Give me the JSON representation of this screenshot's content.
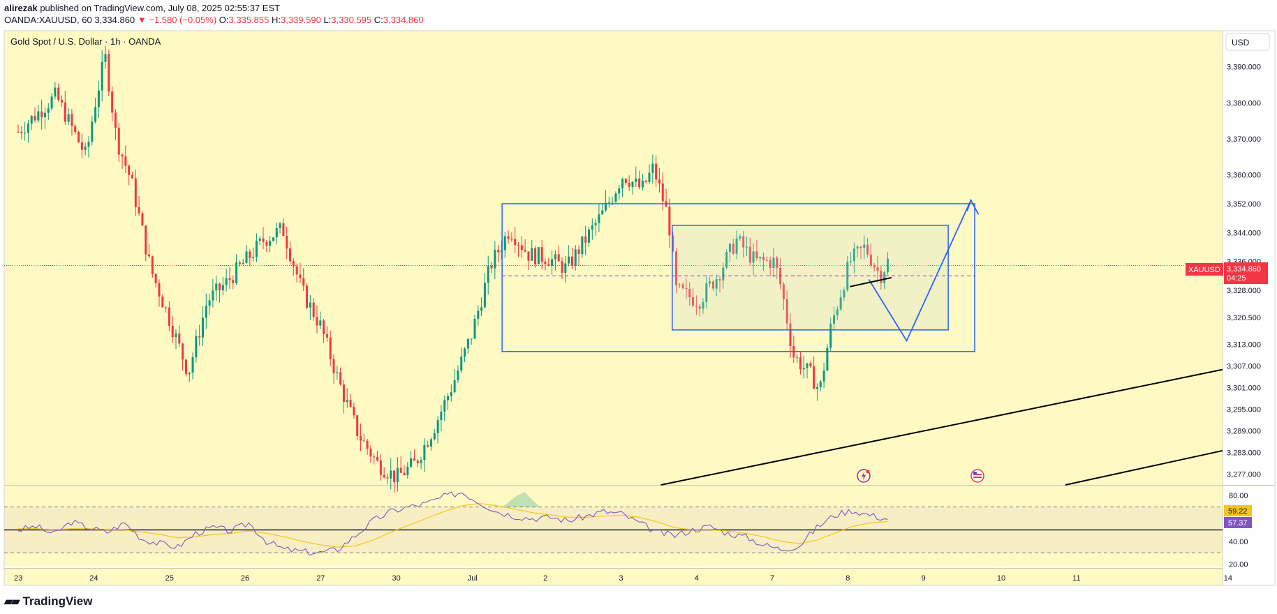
{
  "header": {
    "author": "alirezak",
    "published": "published on TradingView.com, July 08, 2025 02:55:37 EST",
    "symbol": "OANDA:XAUUSD, 60",
    "last": "3,334.860",
    "change": "−1.580 (−0.05%)",
    "o_label": "O:",
    "o": "3,335.855",
    "h_label": "H:",
    "h": "3,339.590",
    "l_label": "L:",
    "l": "3,330.595",
    "c_label": "C:",
    "c": "3,334.860"
  },
  "pane_title": "Gold Spot / U.S. Dollar · 1h · OANDA",
  "currency": "USD",
  "price_tag": {
    "symbol": "XAUUSD",
    "price": "3,334.860",
    "countdown": "04:25"
  },
  "rsi_tags": {
    "a": "59.22",
    "b": "57.37"
  },
  "footer": {
    "brand": "TradingView"
  },
  "colors": {
    "bg": "#fff9c4",
    "up": "#089981",
    "down": "#f23645",
    "box": "#2962ff",
    "rsi": "#7e57c2",
    "rsi_ma": "#f5c51e"
  },
  "chart_data": [
    {
      "type": "candlestick",
      "title": "Gold Spot / U.S. Dollar · 1h · OANDA",
      "x_ticks": [
        "23",
        "24",
        "25",
        "26",
        "27",
        "30",
        "Jul",
        "2",
        "3",
        "4",
        "7",
        "8",
        "9",
        "10",
        "11",
        "14"
      ],
      "y_ticks": [
        "3,390.000",
        "3,380.000",
        "3,370.000",
        "3,360.000",
        "3,352.000",
        "3,344.000",
        "3,336.000",
        "3,328.000",
        "3,320.500",
        "3,313.000",
        "3,307.000",
        "3,301.000",
        "3,295.000",
        "3,289.000",
        "3,283.000",
        "3,277.000"
      ],
      "ylim": [
        3274,
        3400
      ],
      "close_path": [
        [
          0,
          3372
        ],
        [
          0.5,
          3382
        ],
        [
          0.9,
          3365
        ],
        [
          1.0,
          3378
        ],
        [
          1.15,
          3393
        ],
        [
          1.3,
          3370
        ],
        [
          1.5,
          3358
        ],
        [
          1.75,
          3334
        ],
        [
          2.0,
          3320
        ],
        [
          2.25,
          3305
        ],
        [
          2.5,
          3325
        ],
        [
          2.75,
          3330
        ],
        [
          3.0,
          3336
        ],
        [
          3.25,
          3342
        ],
        [
          3.5,
          3345
        ],
        [
          3.75,
          3328
        ],
        [
          4.0,
          3318
        ],
        [
          4.25,
          3302
        ],
        [
          4.5,
          3288
        ],
        [
          4.75,
          3280
        ],
        [
          5.0,
          3276
        ],
        [
          5.25,
          3280
        ],
        [
          5.5,
          3290
        ],
        [
          5.75,
          3302
        ],
        [
          6.0,
          3316
        ],
        [
          6.25,
          3335
        ],
        [
          6.5,
          3345
        ],
        [
          6.75,
          3338
        ],
        [
          7.0,
          3337
        ],
        [
          7.25,
          3334
        ],
        [
          7.5,
          3342
        ],
        [
          7.75,
          3350
        ],
        [
          8.0,
          3360
        ],
        [
          8.25,
          3356
        ],
        [
          8.4,
          3362
        ],
        [
          8.6,
          3348
        ],
        [
          8.7,
          3328
        ],
        [
          9.0,
          3325
        ],
        [
          9.25,
          3332
        ],
        [
          9.5,
          3342
        ],
        [
          9.75,
          3336
        ],
        [
          10.0,
          3336
        ],
        [
          10.1,
          3328
        ],
        [
          10.25,
          3310
        ],
        [
          10.5,
          3304
        ],
        [
          10.6,
          3300
        ],
        [
          10.75,
          3318
        ],
        [
          11.0,
          3336
        ],
        [
          11.2,
          3340
        ],
        [
          11.4,
          3332
        ],
        [
          11.5,
          3336
        ]
      ]
    },
    {
      "type": "line",
      "title": "RSI",
      "y_ticks": [
        "80.00",
        "40.00",
        "20.00"
      ],
      "levels": [
        70,
        50,
        30
      ],
      "ylim": [
        18,
        88
      ],
      "series": [
        {
          "values": [
            50,
            53,
            46,
            57,
            52,
            48,
            56,
            42,
            38,
            35,
            47,
            52,
            49,
            56,
            40,
            33,
            31,
            30,
            33,
            45,
            58,
            66,
            70,
            73,
            79,
            83,
            74,
            66,
            62,
            60,
            61,
            58,
            62,
            66,
            64,
            56,
            48,
            45,
            50,
            53,
            47,
            44,
            37,
            33,
            36,
            52,
            63,
            67,
            63,
            59.22
          ]
        },
        {
          "values": [
            51,
            51,
            50,
            51,
            51,
            50,
            50,
            48,
            46,
            43,
            44,
            46,
            47,
            49,
            47,
            44,
            40,
            37,
            35,
            36,
            41,
            48,
            54,
            60,
            66,
            71,
            73,
            71,
            68,
            65,
            63,
            61,
            61,
            62,
            63,
            61,
            57,
            52,
            50,
            50,
            49,
            47,
            44,
            40,
            38,
            41,
            47,
            53,
            56,
            57.37
          ]
        }
      ]
    }
  ]
}
